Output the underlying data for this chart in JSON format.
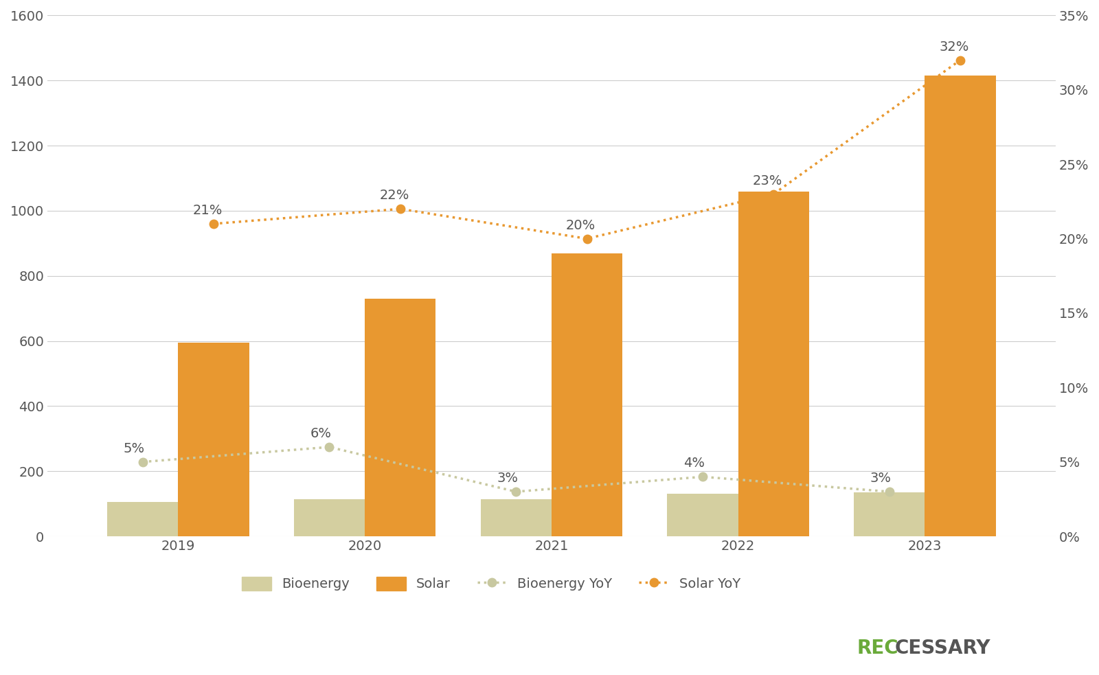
{
  "years": [
    2019,
    2020,
    2021,
    2022,
    2023
  ],
  "bioenergy_values": [
    105,
    115,
    115,
    130,
    135
  ],
  "solar_values": [
    595,
    730,
    870,
    1060,
    1415
  ],
  "bioenergy_yoy": [
    0.05,
    0.06,
    0.03,
    0.04,
    0.03
  ],
  "solar_yoy": [
    0.21,
    0.22,
    0.2,
    0.23,
    0.32
  ],
  "bioenergy_yoy_labels": [
    "5%",
    "6%",
    "3%",
    "4%",
    "3%"
  ],
  "solar_yoy_labels": [
    "21%",
    "22%",
    "20%",
    "23%",
    "32%"
  ],
  "bar_width": 0.38,
  "bioenergy_color": "#d4cfa0",
  "solar_color": "#e89830",
  "bioenergy_yoy_color": "#c8c8a0",
  "solar_yoy_color": "#e89830",
  "background_color": "#ffffff",
  "ylim_left": [
    0,
    1600
  ],
  "ylim_right": [
    0,
    0.35
  ],
  "yticks_left": [
    0,
    200,
    400,
    600,
    800,
    1000,
    1200,
    1400,
    1600
  ],
  "yticks_right": [
    0.0,
    0.05,
    0.1,
    0.15,
    0.2,
    0.25,
    0.3,
    0.35
  ],
  "ytick_right_labels": [
    "0%",
    "5%",
    "10%",
    "15%",
    "20%",
    "25%",
    "30%",
    "35%"
  ],
  "legend_labels": [
    "Bioenergy",
    "Solar",
    "Bioenergy YoY",
    "Solar YoY"
  ],
  "brand_text": "RECCESSARY",
  "brand_color_rec": "#6aaa3a",
  "brand_color_cessary": "#555555",
  "grid_color": "#cccccc",
  "tick_label_color": "#555555",
  "annotation_color": "#555555",
  "annotation_fontsize": 14,
  "tick_fontsize": 14,
  "legend_fontsize": 14,
  "brand_fontsize": 20,
  "dot_linewidth": 2.5,
  "dot_markersize": 9
}
